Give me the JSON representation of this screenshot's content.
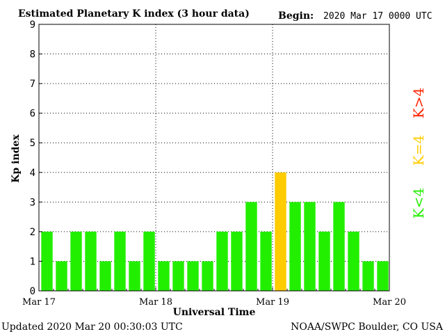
{
  "header": {
    "title": "Estimated Planetary K index (3 hour data)",
    "begin_label": "Begin:",
    "begin_value": "2020 Mar 17 0000 UTC"
  },
  "footer": {
    "updated": "Updated 2020 Mar 20 00:30:03 UTC",
    "credit": "NOAA/SWPC Boulder, CO USA"
  },
  "legend": {
    "high": "K>4",
    "equal": "K=4",
    "low": "K<4"
  },
  "colors": {
    "below_4": "#22ee00",
    "equal_4": "#ffcc00",
    "above_4": "#ff2200",
    "grid": "#000000",
    "axis": "#000000"
  },
  "chart_data": {
    "type": "bar",
    "title": "Estimated Planetary K index (3 hour data)",
    "xlabel": "Universal Time",
    "ylabel": "Kp index",
    "ylim": [
      0,
      9
    ],
    "yticks": [
      "0",
      "1",
      "2",
      "3",
      "4",
      "5",
      "6",
      "7",
      "8",
      "9"
    ],
    "xticks": [
      "Mar 17",
      "Mar 18",
      "Mar 19",
      "Mar 20"
    ],
    "grid": "dotted",
    "bar_interval": "3 hours",
    "values": [
      2,
      1,
      2,
      2,
      1,
      2,
      1,
      2,
      1,
      1,
      1,
      1,
      2,
      2,
      3,
      2,
      4,
      3,
      3,
      2,
      3,
      2,
      1,
      1
    ]
  }
}
